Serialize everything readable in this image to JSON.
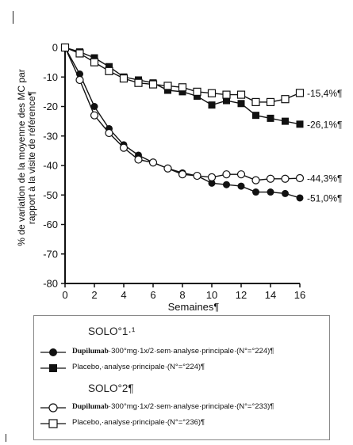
{
  "chart_data": {
    "type": "line",
    "ylabel": "% de variation de la moyenne des MC par rapport à la visite de référence¶",
    "xlabel": "Semaines¶",
    "ylim": [
      -80,
      0
    ],
    "xlim": [
      0,
      16
    ],
    "yticks": [
      0,
      -10,
      -20,
      -30,
      -40,
      -50,
      -60,
      -70,
      -80
    ],
    "xticks": [
      0,
      2,
      4,
      6,
      8,
      10,
      12,
      14,
      16
    ],
    "grid": false,
    "legend_position": "bottom",
    "x": [
      0,
      1,
      2,
      3,
      4,
      5,
      6,
      7,
      8,
      9,
      10,
      11,
      12,
      13,
      14,
      15,
      16
    ],
    "series": [
      {
        "key": "solo1_dupilumab",
        "marker": "filled-circle",
        "values": [
          0,
          -9,
          -20,
          -27.5,
          -33,
          -36.5,
          -39,
          -41,
          -42.5,
          -43.5,
          -46,
          -46.5,
          -47,
          -49,
          -49,
          -49.5,
          -51
        ],
        "end_label": "-51,0%¶"
      },
      {
        "key": "solo1_placebo",
        "marker": "filled-square",
        "values": [
          0,
          -1.5,
          -3.5,
          -6.5,
          -10,
          -11,
          -12,
          -14.5,
          -15,
          -16.5,
          -19.5,
          -18,
          -19,
          -23,
          -24,
          -25,
          -26
        ],
        "end_label": "-26,1%¶"
      },
      {
        "key": "solo2_dupilumab",
        "marker": "open-circle",
        "values": [
          0,
          -11,
          -23,
          -29,
          -34,
          -38,
          -39,
          -41,
          -43,
          -43.5,
          -44,
          -43,
          -43,
          -45,
          -44.5,
          -44.5,
          -44.3
        ],
        "end_label": "-44,3%¶"
      },
      {
        "key": "solo2_placebo",
        "marker": "open-square",
        "values": [
          0,
          -2,
          -5,
          -8,
          -10.5,
          -12,
          -12.5,
          -13,
          -13.5,
          -15,
          -15.5,
          -16,
          -16,
          -18.5,
          -18.5,
          -17.5,
          -15.4
        ],
        "end_label": "-15,4%¶"
      }
    ]
  },
  "legend": {
    "group1_title": "SOLO°1·¹",
    "group2_title": "SOLO°2¶",
    "items": [
      {
        "drug": "Dupilumab",
        "text": "·300°mg·1x/2·sem·analyse·principale·(N°=°224)¶"
      },
      {
        "drug": "",
        "text": "Placebo,·analyse·principale·(N°=°224)¶"
      },
      {
        "drug": "Dupilumab",
        "text": "·300°mg·1x/2·sem·analyse·principale·(N°=°233)¶"
      },
      {
        "drug": "",
        "text": "Placebo,·analyse·principale·(N°=°236)¶"
      }
    ]
  }
}
